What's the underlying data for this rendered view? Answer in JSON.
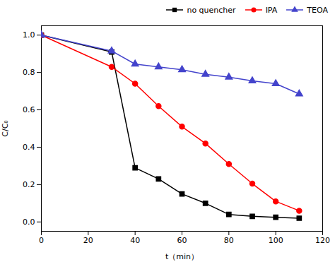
{
  "chart_data": {
    "type": "line",
    "xlabel": "t（min）",
    "ylabel": "C/C₀",
    "xlim": [
      0,
      120
    ],
    "ylim": [
      -0.05,
      1.05
    ],
    "xticks": [
      0,
      20,
      40,
      60,
      80,
      100,
      120
    ],
    "yticks": [
      {
        "value": 0,
        "label": "0.0"
      },
      0.2,
      0.4,
      0.6,
      0.8,
      {
        "value": 1,
        "label": "1.0"
      }
    ],
    "legend": "upper right",
    "series": [
      {
        "name": "no quencher",
        "color": "#000000",
        "marker": "square",
        "line_style": "solid",
        "x": [
          0,
          30,
          40,
          50,
          60,
          70,
          80,
          90,
          100,
          110
        ],
        "values": [
          1.0,
          0.91,
          0.29,
          0.23,
          0.15,
          0.1,
          0.04,
          0.03,
          0.025,
          0.02
        ]
      },
      {
        "name": "IPA",
        "color": "#ff0000",
        "marker": "circle",
        "line_style": "solid",
        "x": [
          0,
          30,
          40,
          50,
          60,
          70,
          80,
          90,
          100,
          110
        ],
        "values": [
          1.0,
          0.83,
          0.74,
          0.62,
          0.51,
          0.42,
          0.31,
          0.205,
          0.11,
          0.06
        ]
      },
      {
        "name": "TEOA",
        "color": "#4444cc",
        "marker": "triangle",
        "line_style": "solid",
        "x": [
          0,
          30,
          40,
          50,
          60,
          70,
          80,
          90,
          100,
          110
        ],
        "values": [
          1.0,
          0.915,
          0.845,
          0.83,
          0.815,
          0.79,
          0.775,
          0.755,
          0.74,
          0.685
        ]
      }
    ]
  }
}
